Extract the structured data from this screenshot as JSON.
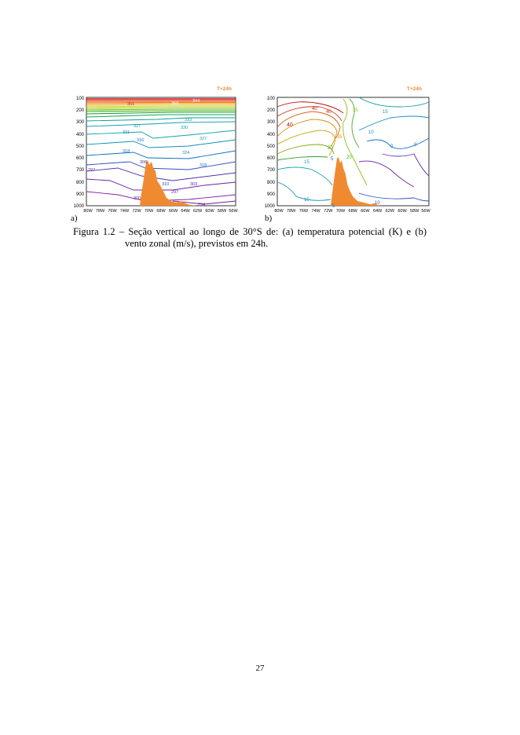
{
  "figure": {
    "panel_a": {
      "letter": "a)",
      "forecast_label": "T+24h",
      "y_ticks": [
        "100",
        "200",
        "300",
        "400",
        "500",
        "600",
        "700",
        "800",
        "900",
        "1000"
      ],
      "x_ticks": [
        "80W",
        "78W",
        "76W",
        "74W",
        "72W",
        "70W",
        "68W",
        "66W",
        "64W",
        "62W",
        "60W",
        "58W",
        "56W"
      ],
      "contour_labels": [
        "351",
        "369",
        "344",
        "333",
        "330",
        "327",
        "327",
        "324",
        "321",
        "318",
        "318",
        "316",
        "310",
        "306",
        "303",
        "300",
        "297",
        "297",
        "294"
      ],
      "colors": {
        "frame": "#000000",
        "terrain": "#f08a30",
        "label": "#f08a30"
      }
    },
    "panel_b": {
      "letter": "b)",
      "forecast_label": "T+24h",
      "y_ticks": [
        "100",
        "200",
        "300",
        "400",
        "500",
        "600",
        "700",
        "800",
        "900",
        "1000"
      ],
      "x_ticks": [
        "80W",
        "78W",
        "76W",
        "74W",
        "72W",
        "70W",
        "68W",
        "66W",
        "64W",
        "62W",
        "60W",
        "58W",
        "56W"
      ],
      "contour_labels": [
        "40",
        "40",
        "40",
        "25",
        "35",
        "15",
        "20",
        "10",
        "15",
        "5",
        "0",
        "-5",
        "10",
        "20",
        "10",
        "0"
      ],
      "colors": {
        "frame": "#000000",
        "terrain": "#f08a30"
      }
    }
  },
  "caption": {
    "line1": "Figura 1.2 – Seção vertical ao longo de 30°S de: (a) temperatura potencial (K) e (b)",
    "line2": "vento zonal (m/s), previstos em 24h."
  },
  "page_number": "27"
}
